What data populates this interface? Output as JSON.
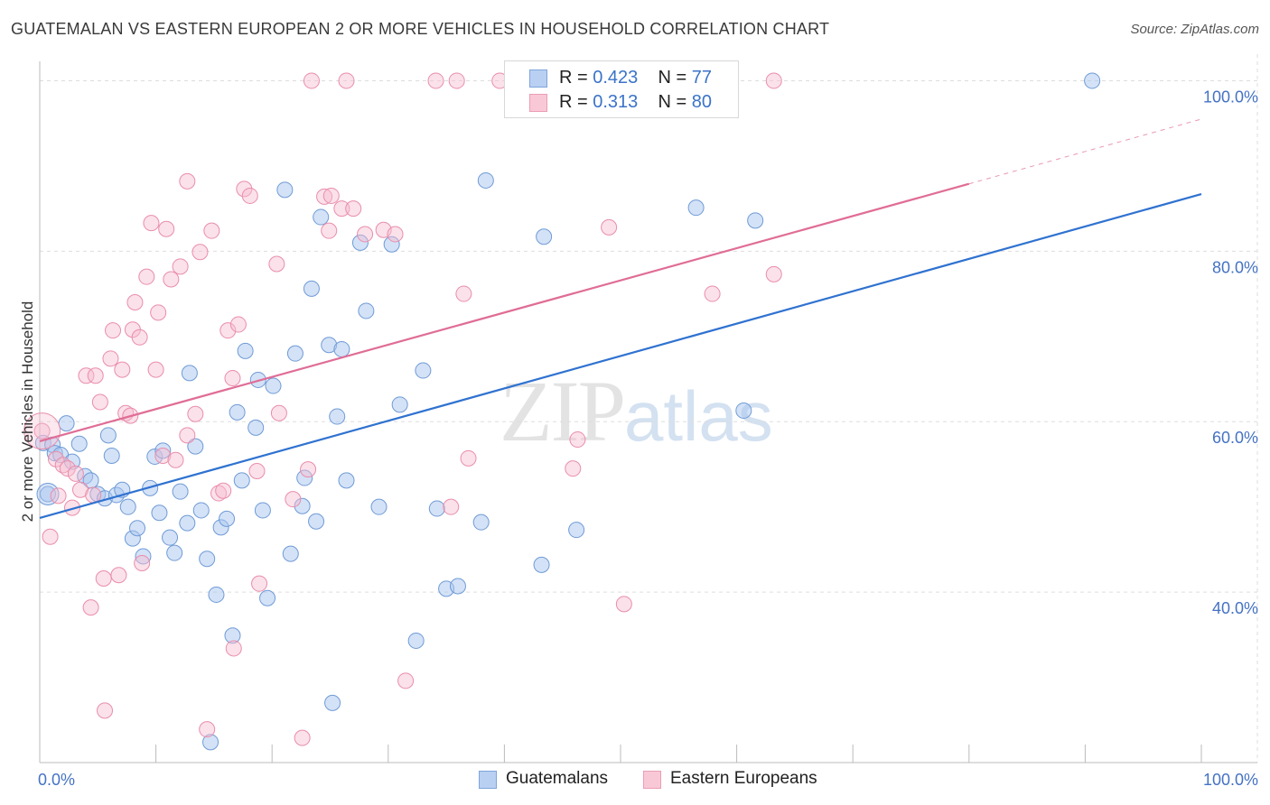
{
  "title": "GUATEMALAN VS EASTERN EUROPEAN 2 OR MORE VEHICLES IN HOUSEHOLD CORRELATION CHART",
  "source": "Source: ZipAtlas.com",
  "watermark": {
    "zip": "ZIP",
    "atlas": "atlas"
  },
  "legend": {
    "rows": [
      {
        "r_label": "R = ",
        "r_value": "0.423",
        "n_label": "N = ",
        "n_value": "77"
      },
      {
        "r_label": "R = ",
        "r_value": "0.313",
        "n_label": "N = ",
        "n_value": "80"
      }
    ]
  },
  "bottom_legend": [
    "Guatemalans",
    "Eastern Europeans"
  ],
  "colors": {
    "blue_fill": "#a9c6ef",
    "blue_stroke": "#6f9bd6",
    "blue_line": "#2f72d0",
    "pink_fill": "#f7bdd0",
    "pink_stroke": "#e98eab",
    "pink_line": "#e06d96",
    "grid": "#dddddd",
    "axis_text": "#4472c4"
  },
  "chart_data": {
    "type": "scatter",
    "title": "GUATEMALAN VS EASTERN EUROPEAN 2 OR MORE VEHICLES IN HOUSEHOLD CORRELATION CHART",
    "xlabel": "",
    "ylabel": "2 or more Vehicles in Household",
    "xlim": [
      0,
      100
    ],
    "ylim": [
      20,
      101
    ],
    "x_tick_labels": [
      "0.0%",
      "100.0%"
    ],
    "y_ticks": [
      40,
      60,
      80,
      100
    ],
    "y_tick_labels": [
      "40.0%",
      "60.0%",
      "80.0%",
      "100.0%"
    ],
    "grid": true,
    "legend_position": "top-center",
    "series": [
      {
        "name": "Guatemalans",
        "R": 0.423,
        "N": 77,
        "trend": {
          "x0": 0,
          "y0": 48.7,
          "x1": 100,
          "y1": 86.7
        },
        "points": [
          [
            0.3,
            57.5
          ],
          [
            0.7,
            51.5
          ],
          [
            1.1,
            57.3
          ],
          [
            1.3,
            56.3
          ],
          [
            1.8,
            56.1
          ],
          [
            2.3,
            59.8
          ],
          [
            2.8,
            55.3
          ],
          [
            3.4,
            57.4
          ],
          [
            3.9,
            53.6
          ],
          [
            4.4,
            53.1
          ],
          [
            5.0,
            51.5
          ],
          [
            5.6,
            51.0
          ],
          [
            5.9,
            58.4
          ],
          [
            6.2,
            56.0
          ],
          [
            6.6,
            51.4
          ],
          [
            7.1,
            52.0
          ],
          [
            7.6,
            50.0
          ],
          [
            8.0,
            46.3
          ],
          [
            8.4,
            47.5
          ],
          [
            8.9,
            44.2
          ],
          [
            9.5,
            52.2
          ],
          [
            9.9,
            55.9
          ],
          [
            10.3,
            49.3
          ],
          [
            10.6,
            56.6
          ],
          [
            11.2,
            46.4
          ],
          [
            11.6,
            44.6
          ],
          [
            12.1,
            51.8
          ],
          [
            12.7,
            48.1
          ],
          [
            12.9,
            65.7
          ],
          [
            13.4,
            57.1
          ],
          [
            13.9,
            49.6
          ],
          [
            14.4,
            43.9
          ],
          [
            14.7,
            22.4
          ],
          [
            15.2,
            39.7
          ],
          [
            15.6,
            47.6
          ],
          [
            16.1,
            48.6
          ],
          [
            16.6,
            34.9
          ],
          [
            17.0,
            61.1
          ],
          [
            17.4,
            53.1
          ],
          [
            17.7,
            68.3
          ],
          [
            18.6,
            59.3
          ],
          [
            18.8,
            64.9
          ],
          [
            19.2,
            49.6
          ],
          [
            19.6,
            39.3
          ],
          [
            20.1,
            64.2
          ],
          [
            21.1,
            87.2
          ],
          [
            21.6,
            44.5
          ],
          [
            22.0,
            68.0
          ],
          [
            22.6,
            50.1
          ],
          [
            22.8,
            53.4
          ],
          [
            23.4,
            75.6
          ],
          [
            23.8,
            48.3
          ],
          [
            24.2,
            84.0
          ],
          [
            24.9,
            69.0
          ],
          [
            25.2,
            27.0
          ],
          [
            25.6,
            60.6
          ],
          [
            26.0,
            68.5
          ],
          [
            26.4,
            53.1
          ],
          [
            27.6,
            81.0
          ],
          [
            28.1,
            73.0
          ],
          [
            29.2,
            50.0
          ],
          [
            30.3,
            80.8
          ],
          [
            31.0,
            62.0
          ],
          [
            32.4,
            34.3
          ],
          [
            33.0,
            66.0
          ],
          [
            34.2,
            49.8
          ],
          [
            35.0,
            40.4
          ],
          [
            36.0,
            40.7
          ],
          [
            38.0,
            48.2
          ],
          [
            38.4,
            88.3
          ],
          [
            43.2,
            43.2
          ],
          [
            43.4,
            81.7
          ],
          [
            46.2,
            47.3
          ],
          [
            56.5,
            85.1
          ],
          [
            60.6,
            61.3
          ],
          [
            61.6,
            83.6
          ],
          [
            90.6,
            100.0
          ]
        ]
      },
      {
        "name": "Eastern Europeans",
        "R": 0.313,
        "N": 80,
        "trend": {
          "x0": 0,
          "y0": 57.7,
          "x1": 80,
          "y1": 87.9
        },
        "trend_dashed": {
          "x0": 80,
          "y0": 87.9,
          "x1": 100,
          "y1": 95.5
        },
        "points": [
          [
            0.2,
            58.9
          ],
          [
            0.9,
            46.5
          ],
          [
            1.4,
            55.6
          ],
          [
            1.6,
            51.3
          ],
          [
            2.0,
            54.9
          ],
          [
            2.4,
            54.5
          ],
          [
            2.8,
            49.9
          ],
          [
            3.1,
            53.9
          ],
          [
            3.5,
            52.0
          ],
          [
            4.0,
            65.4
          ],
          [
            4.4,
            38.2
          ],
          [
            4.6,
            51.4
          ],
          [
            4.8,
            65.4
          ],
          [
            5.2,
            62.3
          ],
          [
            5.5,
            41.6
          ],
          [
            5.6,
            26.1
          ],
          [
            6.1,
            67.4
          ],
          [
            6.3,
            70.7
          ],
          [
            6.8,
            42.0
          ],
          [
            7.1,
            66.1
          ],
          [
            7.4,
            61.0
          ],
          [
            7.8,
            60.7
          ],
          [
            8.0,
            70.8
          ],
          [
            8.2,
            74.0
          ],
          [
            8.6,
            69.9
          ],
          [
            8.8,
            43.4
          ],
          [
            9.2,
            77.0
          ],
          [
            9.6,
            83.3
          ],
          [
            10.0,
            66.1
          ],
          [
            10.2,
            72.8
          ],
          [
            10.6,
            56.0
          ],
          [
            10.9,
            82.6
          ],
          [
            11.3,
            76.7
          ],
          [
            11.7,
            55.5
          ],
          [
            12.1,
            78.2
          ],
          [
            12.7,
            58.4
          ],
          [
            12.7,
            88.2
          ],
          [
            13.4,
            60.9
          ],
          [
            13.8,
            79.9
          ],
          [
            14.4,
            23.9
          ],
          [
            14.8,
            82.4
          ],
          [
            15.4,
            51.6
          ],
          [
            15.8,
            51.9
          ],
          [
            16.2,
            70.7
          ],
          [
            16.6,
            65.1
          ],
          [
            16.7,
            33.4
          ],
          [
            17.1,
            71.4
          ],
          [
            17.6,
            87.3
          ],
          [
            18.1,
            86.5
          ],
          [
            18.7,
            54.2
          ],
          [
            18.9,
            41.0
          ],
          [
            20.4,
            78.5
          ],
          [
            20.6,
            61.0
          ],
          [
            21.8,
            50.9
          ],
          [
            22.6,
            22.9
          ],
          [
            23.1,
            54.4
          ],
          [
            23.4,
            100.0
          ],
          [
            24.5,
            86.4
          ],
          [
            24.9,
            82.4
          ],
          [
            25.1,
            86.5
          ],
          [
            26.0,
            85.0
          ],
          [
            26.4,
            100.0
          ],
          [
            27.0,
            85.0
          ],
          [
            28.0,
            82.0
          ],
          [
            29.6,
            82.5
          ],
          [
            30.6,
            82.0
          ],
          [
            31.5,
            29.6
          ],
          [
            34.1,
            100.0
          ],
          [
            35.4,
            50.0
          ],
          [
            35.9,
            100.0
          ],
          [
            36.5,
            75.0
          ],
          [
            36.9,
            55.7
          ],
          [
            39.6,
            100.0
          ],
          [
            45.9,
            54.5
          ],
          [
            46.3,
            57.9
          ],
          [
            49.0,
            82.8
          ],
          [
            50.3,
            38.6
          ],
          [
            57.9,
            75.0
          ],
          [
            63.2,
            77.3
          ],
          [
            63.2,
            100.0
          ]
        ]
      }
    ]
  }
}
